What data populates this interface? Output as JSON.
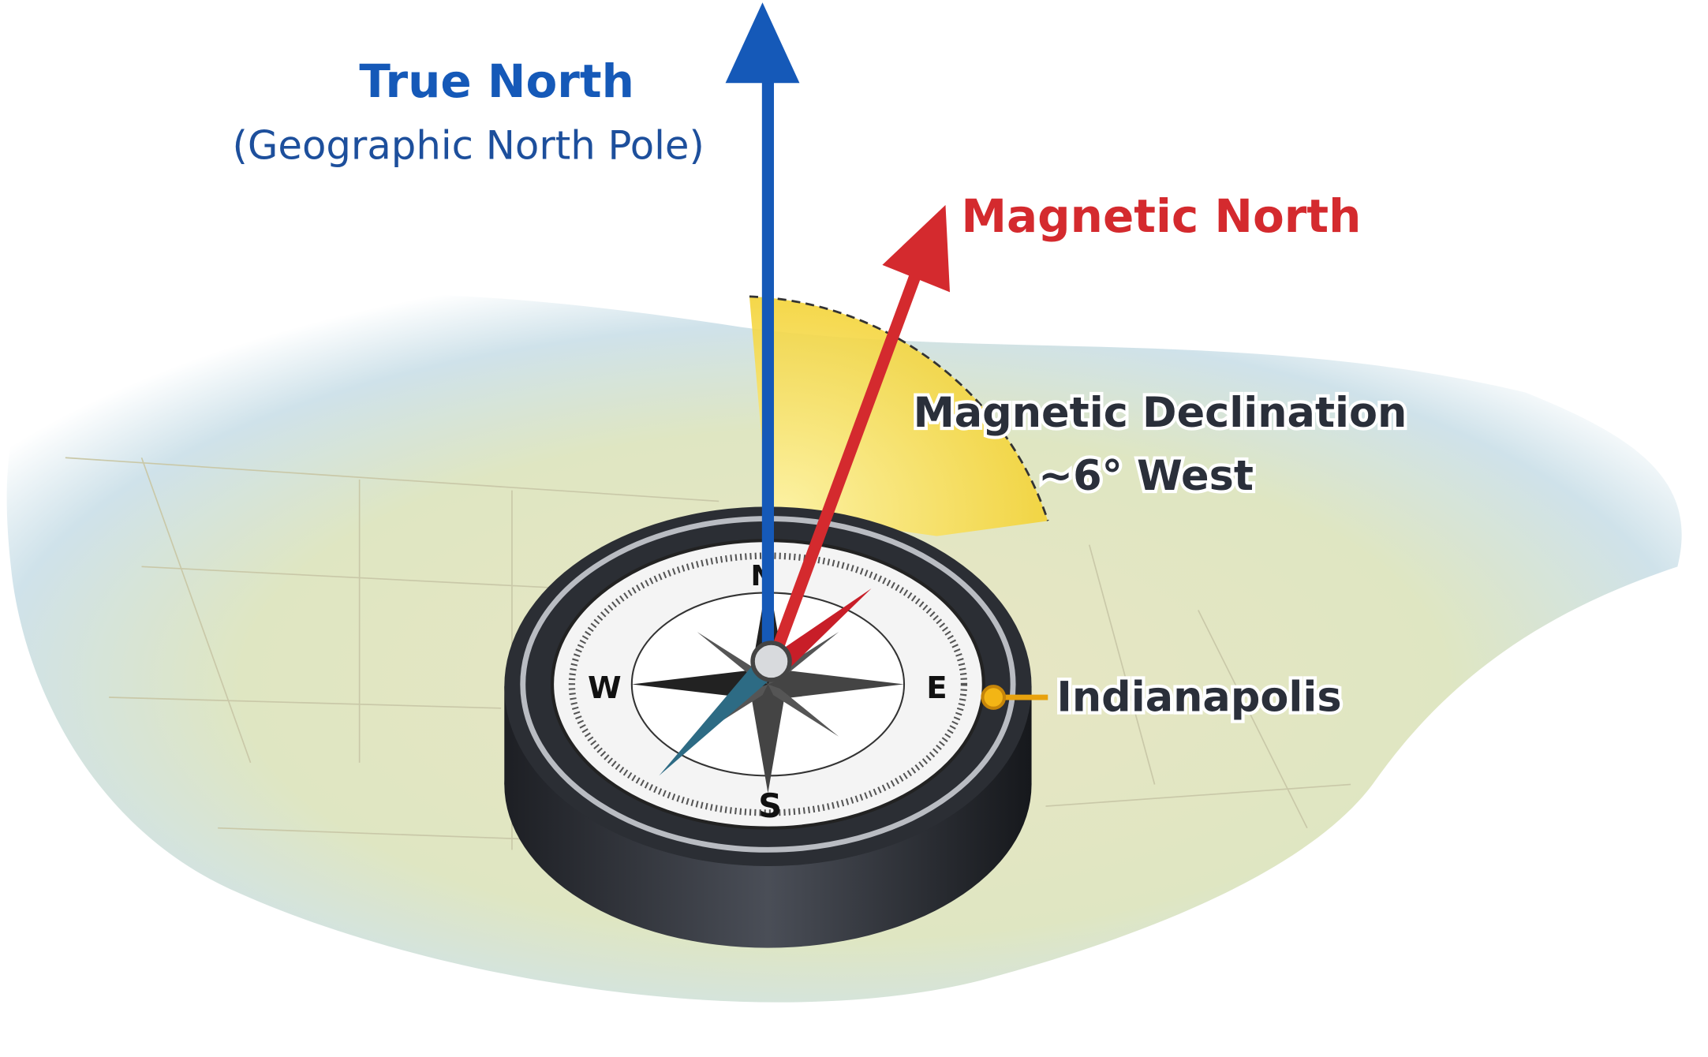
{
  "true_north": {
    "title": "True North",
    "subtitle": "(Geographic North Pole)"
  },
  "magnetic_north": {
    "title": "Magnetic North"
  },
  "declination": {
    "title": "Magnetic Declination",
    "value": "~6° West"
  },
  "location": {
    "label": "Indianapolis"
  },
  "compass": {
    "cardinals": [
      "N",
      "E",
      "S",
      "W"
    ]
  }
}
